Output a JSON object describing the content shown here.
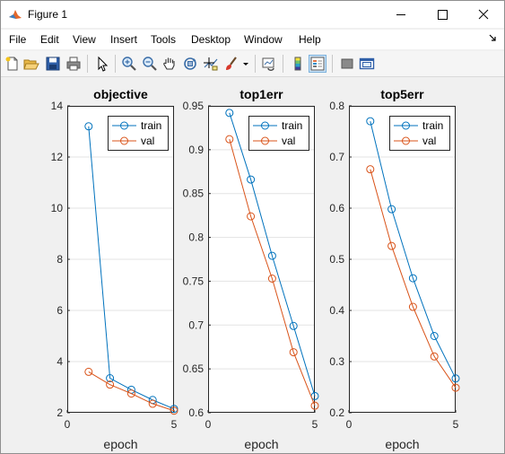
{
  "window": {
    "title": "Figure 1"
  },
  "menu": {
    "items": [
      "File",
      "Edit",
      "View",
      "Insert",
      "Tools",
      "Desktop",
      "Window",
      "Help"
    ]
  },
  "toolbar": {
    "icons": [
      "new-figure-icon",
      "open-file-icon",
      "save-icon",
      "print-icon",
      "edit-plot-arrow-icon",
      "zoom-in-icon",
      "zoom-out-icon",
      "pan-hand-icon",
      "rotate-3d-icon",
      "data-cursor-icon",
      "brush-icon",
      "link-plot-icon",
      "colorbar-icon",
      "legend-icon",
      "hide-plot-tools-icon",
      "show-plot-tools-icon"
    ]
  },
  "colors": {
    "train": "#0072bd",
    "val": "#d95319"
  },
  "chart_data": [
    {
      "type": "line",
      "title": "objective",
      "xlabel": "epoch",
      "ylabel": "",
      "xlim": [
        0,
        5
      ],
      "ylim": [
        2,
        14
      ],
      "xticks": [
        "0",
        "5"
      ],
      "yticks": [
        "2",
        "4",
        "6",
        "8",
        "10",
        "12",
        "14"
      ],
      "grid": true,
      "legend": "top-right",
      "x": [
        1,
        2,
        3,
        4,
        5
      ],
      "series": [
        {
          "name": "train",
          "values": [
            13.2,
            3.35,
            2.9,
            2.5,
            2.15
          ]
        },
        {
          "name": "val",
          "values": [
            3.6,
            3.1,
            2.75,
            2.35,
            2.08
          ]
        }
      ]
    },
    {
      "type": "line",
      "title": "top1err",
      "xlabel": "epoch",
      "ylabel": "",
      "xlim": [
        0,
        5
      ],
      "ylim": [
        0.6,
        0.95
      ],
      "xticks": [
        "0",
        "5"
      ],
      "yticks": [
        "0.6",
        "0.65",
        "0.7",
        "0.75",
        "0.8",
        "0.85",
        "0.9",
        "0.95"
      ],
      "grid": true,
      "legend": "top-right",
      "x": [
        1,
        2,
        3,
        4,
        5
      ],
      "series": [
        {
          "name": "train",
          "values": [
            0.942,
            0.866,
            0.779,
            0.699,
            0.619
          ]
        },
        {
          "name": "val",
          "values": [
            0.912,
            0.824,
            0.753,
            0.669,
            0.608
          ]
        }
      ]
    },
    {
      "type": "line",
      "title": "top5err",
      "xlabel": "epoch",
      "ylabel": "",
      "xlim": [
        0,
        5
      ],
      "ylim": [
        0.2,
        0.8
      ],
      "xticks": [
        "0",
        "5"
      ],
      "yticks": [
        "0.2",
        "0.3",
        "0.4",
        "0.5",
        "0.6",
        "0.7",
        "0.8"
      ],
      "grid": true,
      "legend": "top-right",
      "x": [
        1,
        2,
        3,
        4,
        5
      ],
      "series": [
        {
          "name": "train",
          "values": [
            0.77,
            0.598,
            0.463,
            0.35,
            0.267
          ]
        },
        {
          "name": "val",
          "values": [
            0.676,
            0.526,
            0.407,
            0.31,
            0.249
          ]
        }
      ]
    }
  ]
}
